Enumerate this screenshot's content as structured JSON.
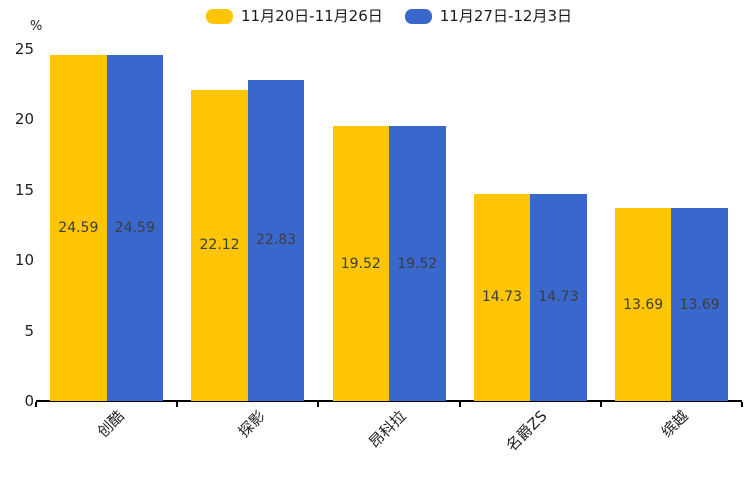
{
  "chart_data": {
    "type": "bar",
    "title": "",
    "unit_label": "%",
    "categories": [
      "创酷",
      "探影",
      "昂科拉",
      "名爵ZS",
      "缤越"
    ],
    "series": [
      {
        "name": "11月20日-11月26日",
        "color": "#FDC503",
        "values": [
          24.59,
          22.12,
          19.52,
          14.73,
          13.69
        ]
      },
      {
        "name": "11月27日-12月3日",
        "color": "#3A67CB",
        "values": [
          24.59,
          22.83,
          19.52,
          14.73,
          13.69
        ]
      }
    ],
    "value_label_color": "#3d3d3d",
    "axis_color": "#000000",
    "ylim": [
      0,
      25
    ],
    "yticks": [
      0,
      5,
      10,
      15,
      20,
      25
    ],
    "legend_position": "top-center",
    "grid": false,
    "value_labels": true,
    "background": "#ffffff"
  }
}
